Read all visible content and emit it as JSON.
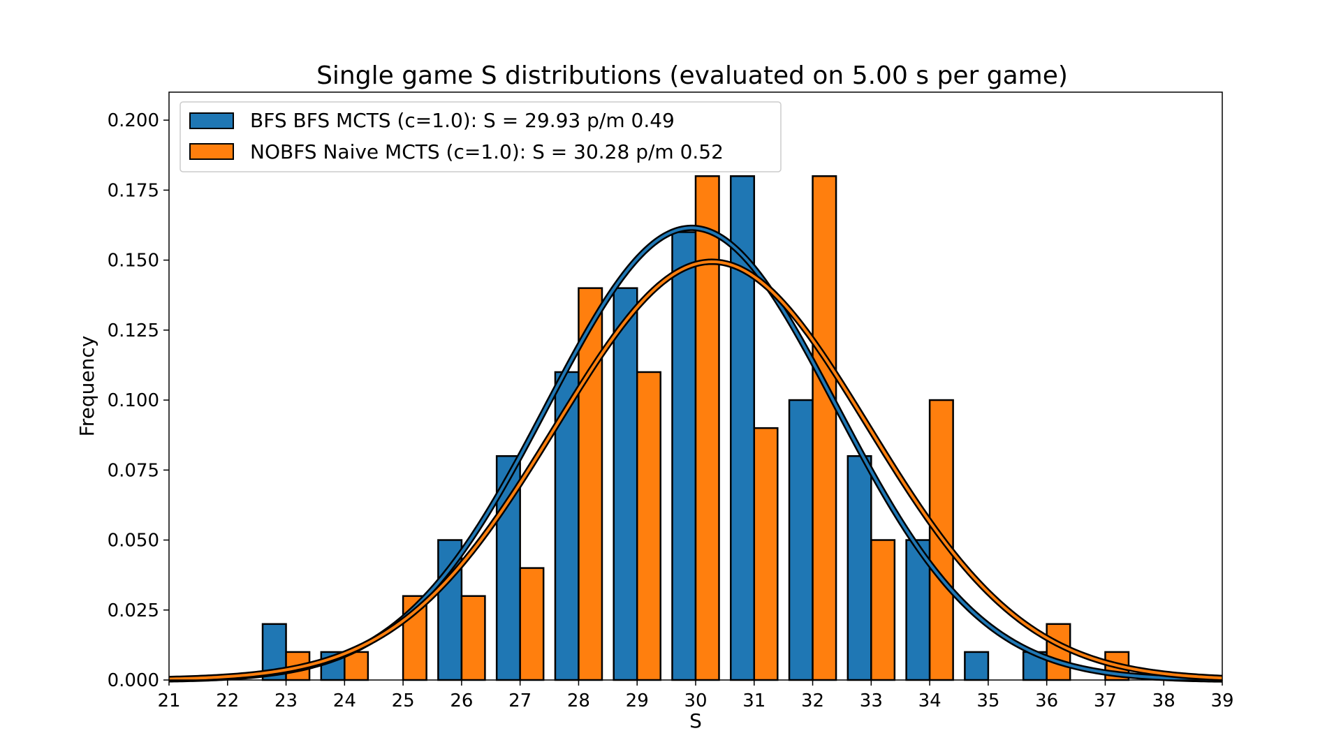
{
  "chart_data": {
    "type": "bar",
    "title": "Single game S distributions (evaluated on 5.00 s per game)",
    "xlabel": "S",
    "ylabel": "Frequency",
    "xlim": [
      21,
      39
    ],
    "ylim": [
      0,
      0.21
    ],
    "x_ticks": [
      "21",
      "22",
      "23",
      "24",
      "25",
      "26",
      "27",
      "28",
      "29",
      "30",
      "31",
      "32",
      "33",
      "34",
      "35",
      "36",
      "37",
      "38",
      "39"
    ],
    "y_ticks": [
      "0.000",
      "0.025",
      "0.050",
      "0.075",
      "0.100",
      "0.125",
      "0.150",
      "0.175",
      "0.200"
    ],
    "legend_position": "upper-left",
    "categories": [
      23,
      24,
      25,
      26,
      27,
      28,
      29,
      30,
      31,
      32,
      33,
      34,
      35,
      36,
      37
    ],
    "series": [
      {
        "name": "BFS BFS MCTS (c=1.0): S = 29.93 p/m 0.49",
        "color": "#1f77b4",
        "values": [
          0.02,
          0.01,
          0.0,
          0.05,
          0.08,
          0.11,
          0.14,
          0.16,
          0.18,
          0.1,
          0.08,
          0.05,
          0.01,
          0.01,
          0.0
        ],
        "fit": {
          "mean": 29.93,
          "std": 2.47
        }
      },
      {
        "name": "NOBFS Naive MCTS (c=1.0): S = 30.28 p/m 0.52",
        "color": "#ff7f0e",
        "values": [
          0.01,
          0.01,
          0.03,
          0.03,
          0.04,
          0.14,
          0.11,
          0.18,
          0.09,
          0.18,
          0.05,
          0.1,
          0.0,
          0.02,
          0.01
        ],
        "fit": {
          "mean": 30.28,
          "std": 2.67
        }
      }
    ]
  }
}
